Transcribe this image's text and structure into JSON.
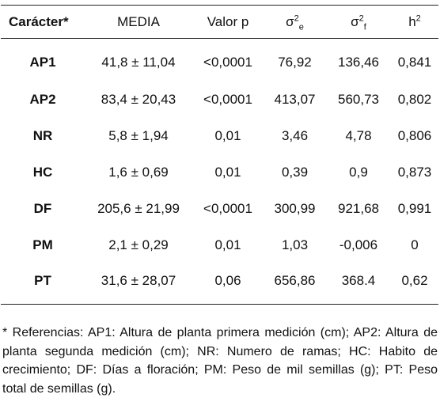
{
  "table": {
    "headers": {
      "caracter": "Carácter*",
      "media": "MEDIA",
      "valor_p": "Valor p",
      "sigma_e": {
        "base": "σ",
        "sup": "2",
        "sub": "e"
      },
      "sigma_f": {
        "base": "σ",
        "sup": "2",
        "sub": "f"
      },
      "h2": {
        "base": "h",
        "sup": "2"
      }
    },
    "rows": [
      {
        "code": "AP1",
        "media": "41,8 ± 11,04",
        "p": "<0,0001",
        "se": "76,92",
        "sf": "136,46",
        "h2": "0,841"
      },
      {
        "code": "AP2",
        "media": "83,4 ± 20,43",
        "p": "<0,0001",
        "se": "413,07",
        "sf": "560,73",
        "h2": "0,802"
      },
      {
        "code": "NR",
        "media": "5,8 ± 1,94",
        "p": "0,01",
        "se": "3,46",
        "sf": "4,78",
        "h2": "0,806"
      },
      {
        "code": "HC",
        "media": "1,6 ± 0,69",
        "p": "0,01",
        "se": "0,39",
        "sf": "0,9",
        "h2": "0,873"
      },
      {
        "code": "DF",
        "media": "205,6 ± 21,99",
        "p": "<0,0001",
        "se": "300,99",
        "sf": "921,68",
        "h2": "0,991"
      },
      {
        "code": "PM",
        "media": "2,1 ± 0,29",
        "p": "0,01",
        "se": "1,03",
        "sf": "-0,006",
        "h2": "0"
      },
      {
        "code": "PT",
        "media": "31,6 ± 28,07",
        "p": "0,06",
        "se": "656,86",
        "sf": "368.4",
        "h2": "0,62"
      }
    ]
  },
  "footnote": "* Referencias: AP1: Altura de planta primera medición (cm); AP2: Altura de planta segunda medición (cm); NR: Numero de ramas; HC: Habito de crecimiento; DF: Días a floración; PM: Peso de mil semillas (g); PT: Peso total de semillas (g)."
}
